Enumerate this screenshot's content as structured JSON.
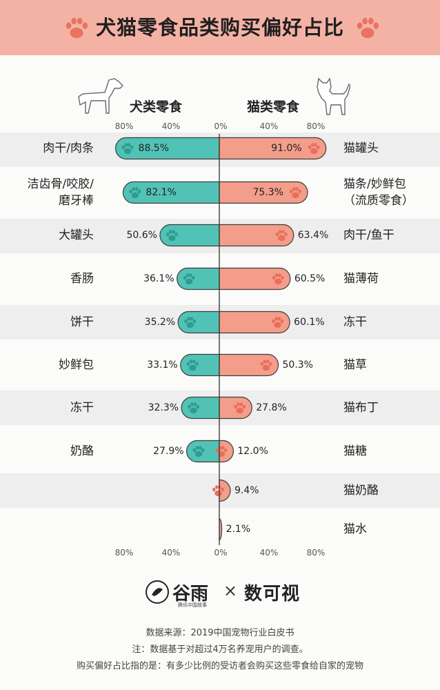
{
  "title": "犬猫零食品类购买偏好占比",
  "colors": {
    "header": "#f4b2a4",
    "dog": "#52c2b6",
    "cat": "#f39d8a",
    "stripe": "#eeeeee",
    "paw_dog": "#2e9c90",
    "paw_cat": "#e86f5a"
  },
  "chart_data": {
    "type": "bar",
    "title": "犬猫零食品类购买偏好占比",
    "xlim": [
      -80,
      80
    ],
    "ticks": [
      "80%",
      "40%",
      "0%",
      "40%",
      "80%"
    ],
    "series": [
      {
        "name": "犬类零食",
        "categories": [
          "肉干/肉条",
          "洁齿骨/咬胶/磨牙棒",
          "大罐头",
          "香肠",
          "饼干",
          "妙鲜包",
          "冻干",
          "奶酪"
        ],
        "values": [
          88.5,
          82.1,
          50.6,
          36.1,
          35.2,
          33.1,
          32.3,
          27.9
        ],
        "labels": [
          "88.5%",
          "82.1%",
          "50.6%",
          "36.1%",
          "35.2%",
          "33.1%",
          "32.3%",
          "27.9%"
        ]
      },
      {
        "name": "猫类零食",
        "categories": [
          "猫罐头",
          "猫条/妙鲜包(流质零食)",
          "肉干/鱼干",
          "猫薄荷",
          "冻干",
          "猫草",
          "猫布丁",
          "猫糖",
          "猫奶酪",
          "猫水"
        ],
        "values": [
          91.0,
          75.3,
          63.4,
          60.5,
          60.1,
          50.3,
          27.8,
          12.0,
          9.4,
          2.1
        ],
        "labels": [
          "91.0%",
          "75.3%",
          "63.4%",
          "60.5%",
          "60.1%",
          "50.3%",
          "27.8%",
          "12.0%",
          "9.4%",
          "2.1%"
        ]
      }
    ]
  },
  "dog_labels": [
    [
      "肉干/肉条"
    ],
    [
      "洁齿骨/咬胶/",
      "磨牙棒"
    ],
    [
      "大罐头"
    ],
    [
      "香肠"
    ],
    [
      "饼干"
    ],
    [
      "妙鲜包"
    ],
    [
      "冻干"
    ],
    [
      "奶酪"
    ],
    [],
    []
  ],
  "cat_labels": [
    [
      "猫罐头"
    ],
    [
      "猫条/妙鲜包",
      "（流质零食）"
    ],
    [
      "肉干/鱼干"
    ],
    [
      "猫薄荷"
    ],
    [
      "冻干"
    ],
    [
      "猫草"
    ],
    [
      "猫布丁"
    ],
    [
      "猫糖"
    ],
    [
      "猫奶酪"
    ],
    [
      "猫水"
    ]
  ],
  "footer": {
    "logo1": "谷雨",
    "logo1_sub": "腾讯中国故事",
    "times": "×",
    "logo2": "数可视",
    "source": "数据来源：2019中国宠物行业白皮书",
    "note1": "注：数据基于对超过4万名养宠用户的调查。",
    "note2": "购买偏好占比指的是：有多少比例的受访者会购买这些零食给自家的宠物"
  }
}
